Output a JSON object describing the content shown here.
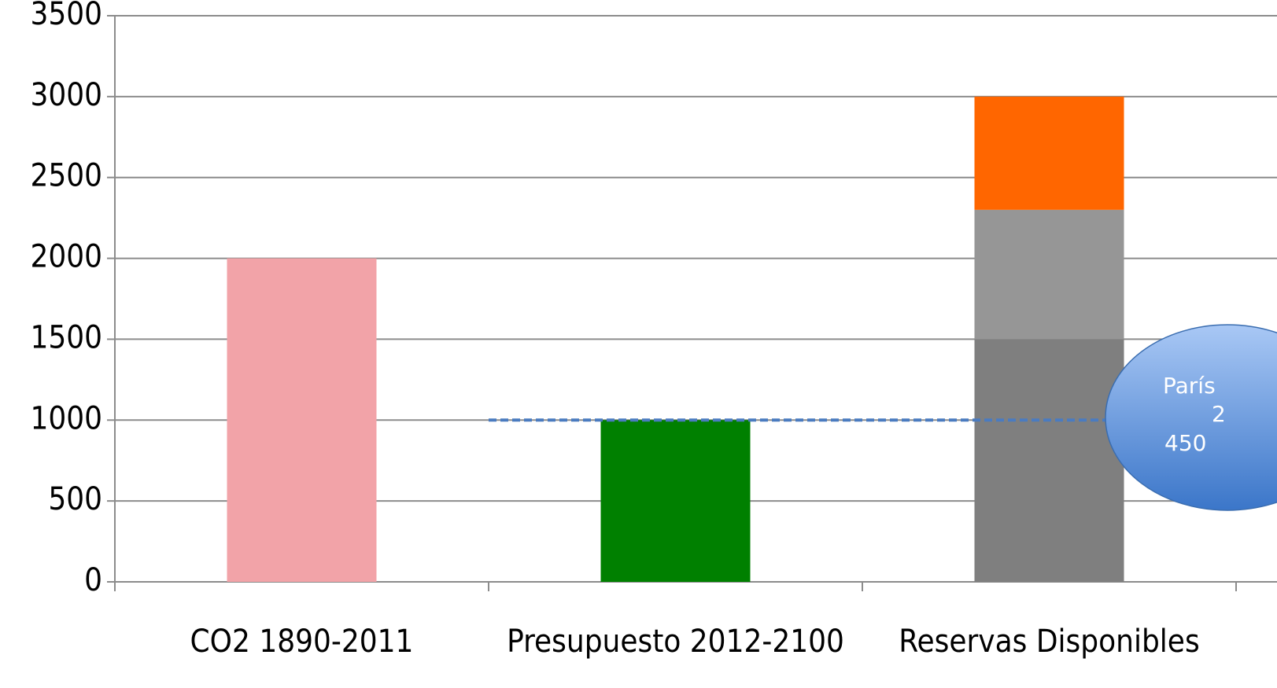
{
  "chart_data": {
    "type": "stacked_bar",
    "categories": [
      "CO2 1890-2011",
      "Presupuesto 2012-2100",
      "Reservas Disponibles"
    ],
    "series": [
      {
        "color": "#f2a3a8",
        "values": [
          2000,
          null,
          null
        ]
      },
      {
        "color": "#008000",
        "values": [
          null,
          1000,
          null
        ]
      },
      {
        "color": "#7f7f7f",
        "values": [
          null,
          null,
          1500
        ]
      },
      {
        "color": "#969696",
        "values": [
          null,
          null,
          800
        ]
      },
      {
        "color": "#ff6600",
        "values": [
          null,
          null,
          700
        ]
      }
    ],
    "ylim": [
      0,
      3500
    ],
    "yticks": [
      0,
      500,
      1000,
      1500,
      2000,
      2500,
      3000,
      3500
    ],
    "grid": true,
    "reference_line": {
      "value": 1000,
      "color": "#4a7bc0"
    },
    "annotation": {
      "lines": [
        "París",
        "2",
        "450"
      ]
    }
  }
}
